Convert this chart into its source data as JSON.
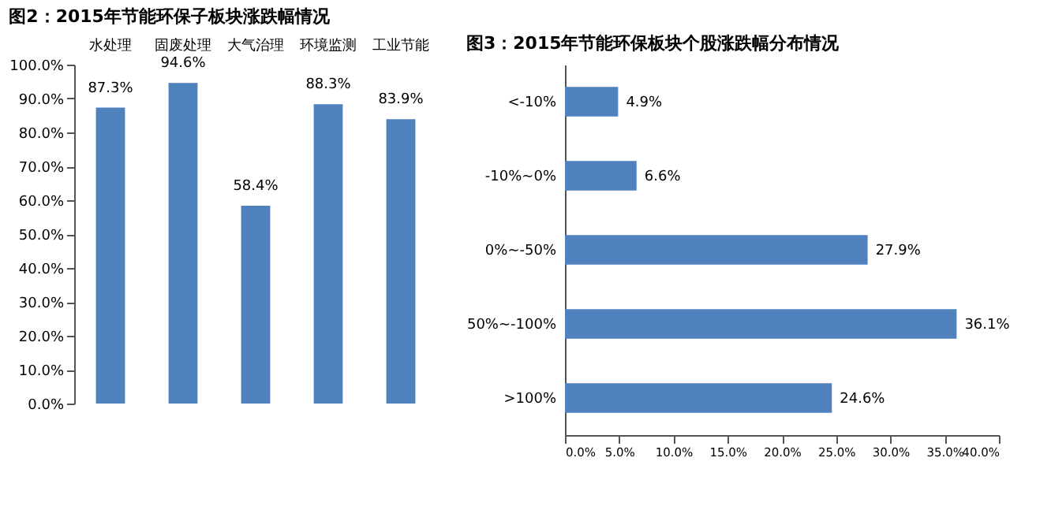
{
  "chart_data": [
    {
      "type": "bar",
      "title": "图2：2015年节能环保子板块涨跌幅情况",
      "categories": [
        "水处理",
        "固废处理",
        "大气治理",
        "环境监测",
        "工业节能"
      ],
      "values": [
        87.3,
        94.6,
        58.4,
        88.3,
        83.9
      ],
      "color": "#4f81bd",
      "value_labels": [
        "87.3%",
        "94.6%",
        "58.4%",
        "88.3%",
        "83.9%"
      ],
      "ylim": [
        0,
        100
      ],
      "yticks": [
        {
          "value": 0,
          "label": "0.0%"
        },
        {
          "value": 10,
          "label": "10.0%"
        },
        {
          "value": 20,
          "label": "20.0%"
        },
        {
          "value": 30,
          "label": "30.0%"
        },
        {
          "value": 40,
          "label": "40.0%"
        },
        {
          "value": 50,
          "label": "50.0%"
        },
        {
          "value": 60,
          "label": "60.0%"
        },
        {
          "value": 70,
          "label": "70.0%"
        },
        {
          "value": 80,
          "label": "80.0%"
        },
        {
          "value": 90,
          "label": "90.0%"
        },
        {
          "value": 100,
          "label": "100.0%"
        }
      ],
      "grid": false
    },
    {
      "type": "bar",
      "orientation": "horizontal",
      "title": "图3：2015年节能环保板块个股涨跌幅分布情况",
      "categories": [
        "<-10%",
        "-10%~0%",
        "0%~-50%",
        "50%~-100%",
        ">100%"
      ],
      "values": [
        4.9,
        6.6,
        27.9,
        36.1,
        24.6
      ],
      "color": "#4f81bd",
      "value_labels": [
        "4.9%",
        "6.6%",
        "27.9%",
        "36.1%",
        "24.6%"
      ],
      "xlim": [
        0,
        40
      ],
      "xticks": [
        {
          "value": 0,
          "label": "0.0%"
        },
        {
          "value": 5,
          "label": "5.0%"
        },
        {
          "value": 10,
          "label": "10.0%"
        },
        {
          "value": 15,
          "label": "15.0%"
        },
        {
          "value": 20,
          "label": "20.0%"
        },
        {
          "value": 25,
          "label": "25.0%"
        },
        {
          "value": 30,
          "label": "30.0%"
        },
        {
          "value": 35,
          "label": "35.0%"
        },
        {
          "value": 40,
          "label": "40.0%"
        }
      ],
      "grid": false
    }
  ]
}
